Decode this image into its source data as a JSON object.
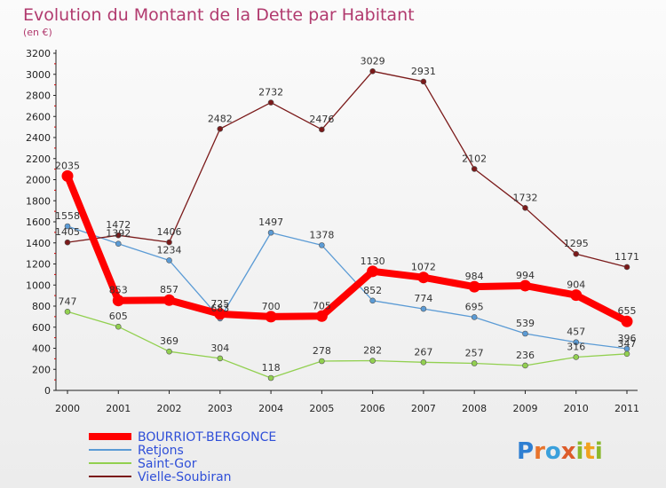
{
  "header": {
    "title": "Evolution du Montant de la Dette par Habitant",
    "unit": "(en €)"
  },
  "logo": {
    "text": "Proxiti",
    "letters": [
      "P",
      "r",
      "o",
      "x",
      "i",
      "t",
      "i"
    ],
    "letter_colors": [
      "#2f7fd2",
      "#e8742c",
      "#3aa0dc",
      "#dd5c2a",
      "#8ab82d",
      "#f0a21e",
      "#8ab82d"
    ]
  },
  "chart_data": {
    "type": "line",
    "title": "Evolution du Montant de la Dette par Habitant",
    "subtitle": "(en €)",
    "xlabel": "",
    "ylabel": "",
    "x": [
      "2000",
      "2001",
      "2002",
      "2003",
      "2004",
      "2005",
      "2006",
      "2007",
      "2008",
      "2009",
      "2010",
      "2011"
    ],
    "ylim": [
      0,
      3200
    ],
    "yticks": [
      0,
      200,
      400,
      600,
      800,
      1000,
      1200,
      1400,
      1600,
      1800,
      2000,
      2200,
      2400,
      2600,
      2800,
      3000,
      3200
    ],
    "grid": false,
    "legend_position": "bottom-left",
    "series": [
      {
        "name": "BOURRIOT-BERGONCE",
        "color": "#ff0000",
        "emphasis": true,
        "values": [
          2035,
          853,
          857,
          725,
          700,
          705,
          1130,
          1072,
          984,
          994,
          904,
          655
        ]
      },
      {
        "name": "Retjons",
        "color": "#5b9bd5",
        "emphasis": false,
        "values": [
          1558,
          1392,
          1234,
          683,
          1497,
          1378,
          852,
          774,
          695,
          539,
          457,
          396
        ]
      },
      {
        "name": "Saint-Gor",
        "color": "#92d050",
        "emphasis": false,
        "values": [
          747,
          605,
          369,
          304,
          118,
          278,
          282,
          267,
          257,
          236,
          316,
          347
        ]
      },
      {
        "name": "Vielle-Soubiran",
        "color": "#7b1a1a",
        "emphasis": false,
        "values": [
          1405,
          1472,
          1406,
          2482,
          2732,
          2476,
          3029,
          2931,
          2102,
          1732,
          1295,
          1171
        ]
      }
    ]
  }
}
